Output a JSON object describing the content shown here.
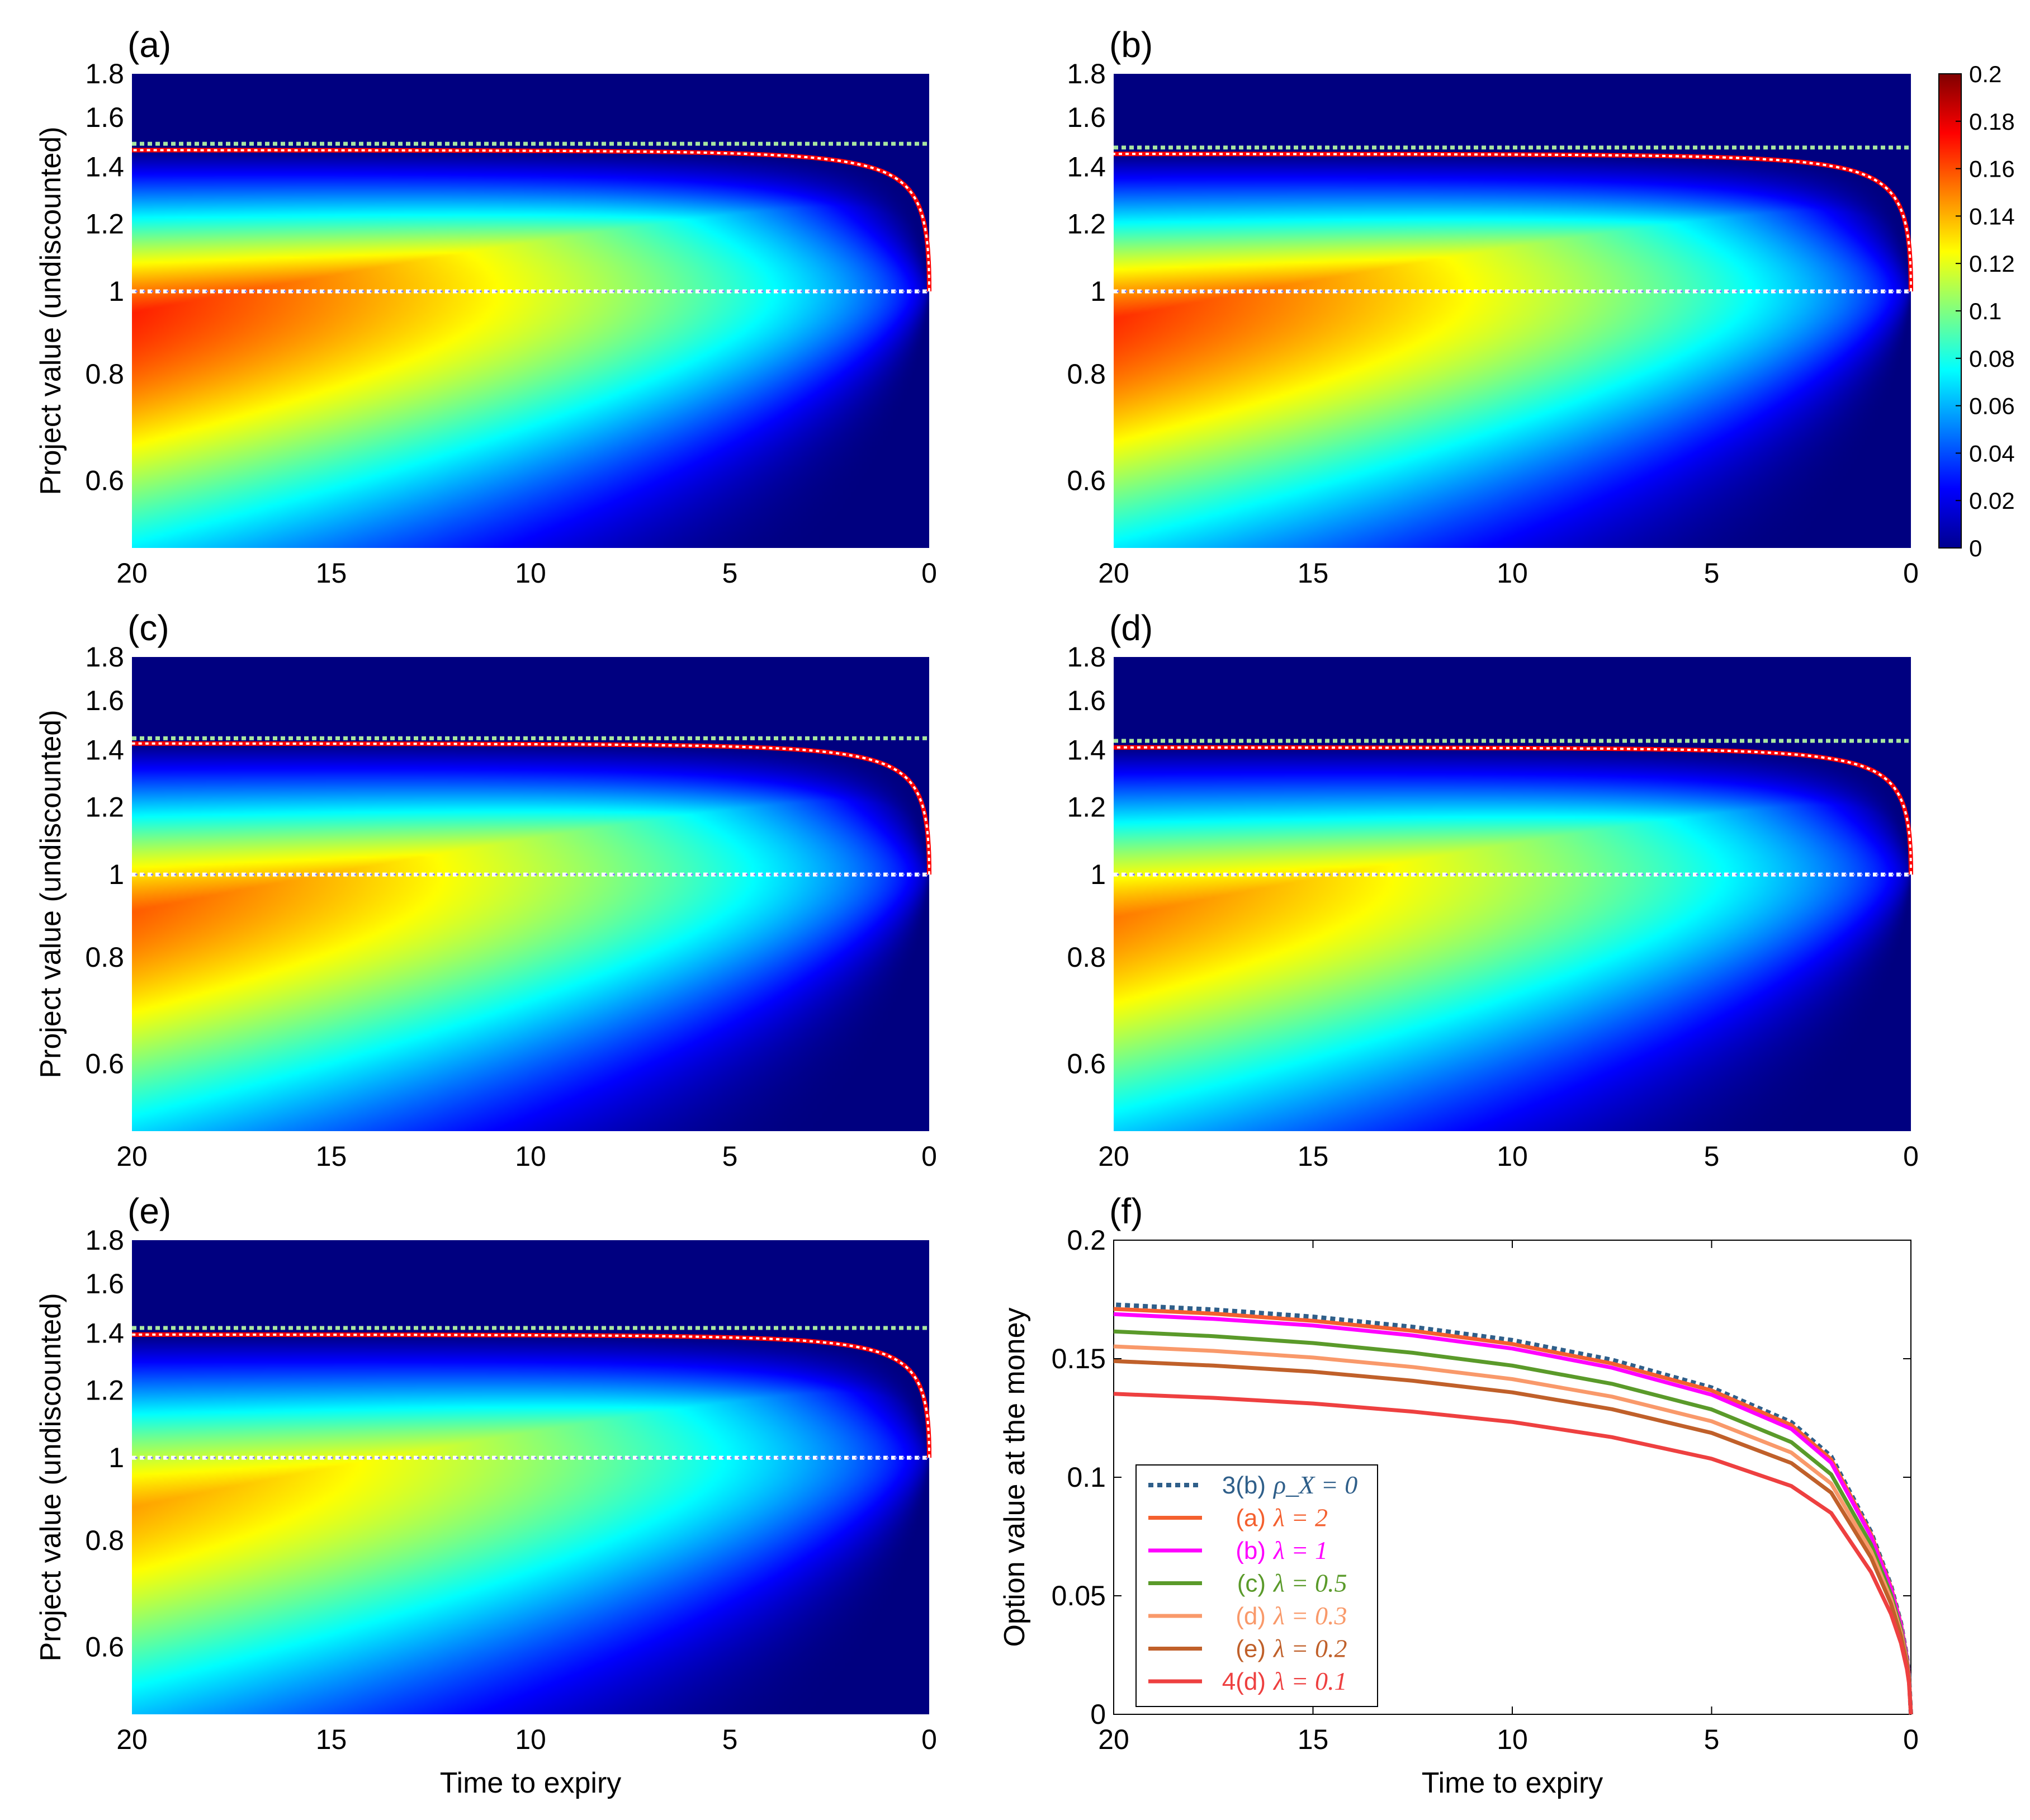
{
  "colors": {
    "heat_low": "#00008f",
    "heat_high": "#800000",
    "boundary_upper": "#ff0000",
    "boundary_dash": "#ffffff",
    "terminal_line": "#a8e6a0",
    "atm_line": "#ffffff"
  },
  "colorbar": {
    "ticks": [
      "0",
      "0.02",
      "0.04",
      "0.06",
      "0.08",
      "0.1",
      "0.12",
      "0.14",
      "0.16",
      "0.18",
      "0.2"
    ],
    "min": 0,
    "max": 0.2
  },
  "chart_data": [
    {
      "type": "heatmap",
      "panel": "(a)",
      "xlabel": "",
      "ylabel": "Project value (undiscounted)",
      "x_ticks": [
        "20",
        "15",
        "10",
        "5",
        "0"
      ],
      "y_ticks": [
        "0.6",
        "0.8",
        "1",
        "1.2",
        "1.4",
        "1.6",
        "1.8"
      ],
      "xlim": [
        20,
        0
      ],
      "ylim": [
        0.5,
        1.8
      ],
      "peak_value": 0.17,
      "terminal_boundary": 1.49,
      "exercise_boundary_at_20": 1.465,
      "strike": 1.0
    },
    {
      "type": "heatmap",
      "panel": "(b)",
      "xlabel": "",
      "ylabel": "",
      "x_ticks": [
        "20",
        "15",
        "10",
        "5",
        "0"
      ],
      "y_ticks": [
        "0.6",
        "0.8",
        "1",
        "1.2",
        "1.4",
        "1.6",
        "1.8"
      ],
      "xlim": [
        20,
        0
      ],
      "ylim": [
        0.5,
        1.8
      ],
      "peak_value": 0.168,
      "terminal_boundary": 1.475,
      "exercise_boundary_at_20": 1.45,
      "strike": 1.0
    },
    {
      "type": "heatmap",
      "panel": "(c)",
      "xlabel": "",
      "ylabel": "Project value (undiscounted)",
      "x_ticks": [
        "20",
        "15",
        "10",
        "5",
        "0"
      ],
      "y_ticks": [
        "0.6",
        "0.8",
        "1",
        "1.2",
        "1.4",
        "1.6",
        "1.8"
      ],
      "xlim": [
        20,
        0
      ],
      "ylim": [
        0.5,
        1.8
      ],
      "peak_value": 0.16,
      "terminal_boundary": 1.445,
      "exercise_boundary_at_20": 1.425,
      "strike": 1.0
    },
    {
      "type": "heatmap",
      "panel": "(d)",
      "xlabel": "",
      "ylabel": "",
      "x_ticks": [
        "20",
        "15",
        "10",
        "5",
        "0"
      ],
      "y_ticks": [
        "0.6",
        "0.8",
        "1",
        "1.2",
        "1.4",
        "1.6",
        "1.8"
      ],
      "xlim": [
        20,
        0
      ],
      "ylim": [
        0.5,
        1.8
      ],
      "peak_value": 0.155,
      "terminal_boundary": 1.435,
      "exercise_boundary_at_20": 1.41,
      "strike": 1.0
    },
    {
      "type": "heatmap",
      "panel": "(e)",
      "xlabel": "Time to expiry",
      "ylabel": "Project value (undiscounted)",
      "x_ticks": [
        "20",
        "15",
        "10",
        "5",
        "0"
      ],
      "y_ticks": [
        "0.6",
        "0.8",
        "1",
        "1.2",
        "1.4",
        "1.6",
        "1.8"
      ],
      "xlim": [
        20,
        0
      ],
      "ylim": [
        0.5,
        1.8
      ],
      "peak_value": 0.148,
      "terminal_boundary": 1.42,
      "exercise_boundary_at_20": 1.395,
      "strike": 1.0
    },
    {
      "type": "line",
      "panel": "(f)",
      "xlabel": "Time to expiry",
      "ylabel": "Option value at the money",
      "x_ticks": [
        "20",
        "15",
        "10",
        "5",
        "0"
      ],
      "y_ticks": [
        "0",
        "0.05",
        "0.1",
        "0.15",
        "0.2"
      ],
      "xlim": [
        20,
        0
      ],
      "ylim": [
        0,
        0.2
      ],
      "x": [
        0,
        0.05,
        0.1,
        0.25,
        0.5,
        1,
        2,
        3,
        5,
        7.5,
        10,
        12.5,
        15,
        17.5,
        20
      ],
      "series": [
        {
          "name": "3(b)",
          "lambda": "ρ_X = 0",
          "color": "#2f5f8a",
          "dashed": true,
          "values": [
            0,
            0.0172,
            0.0243,
            0.0385,
            0.0544,
            0.0769,
            0.1088,
            0.1232,
            0.1378,
            0.1495,
            0.1578,
            0.1634,
            0.1677,
            0.1707,
            0.1728
          ]
        },
        {
          "name": "(a)",
          "lambda": "λ = 2",
          "color": "#f4602f",
          "dashed": false,
          "values": [
            0,
            0.017,
            0.024,
            0.038,
            0.0537,
            0.076,
            0.1075,
            0.122,
            0.1366,
            0.148,
            0.1562,
            0.1618,
            0.166,
            0.169,
            0.171
          ]
        },
        {
          "name": "(b)",
          "lambda": "λ = 1",
          "color": "#ff00ff",
          "dashed": false,
          "values": [
            0,
            0.0168,
            0.0237,
            0.0375,
            0.053,
            0.075,
            0.1061,
            0.1204,
            0.1348,
            0.1462,
            0.1543,
            0.1598,
            0.164,
            0.1668,
            0.1688
          ]
        },
        {
          "name": "(c)",
          "lambda": "λ = 0.5",
          "color": "#5a9a2a",
          "dashed": false,
          "values": [
            0,
            0.016,
            0.0227,
            0.0358,
            0.0506,
            0.0716,
            0.1012,
            0.1148,
            0.1286,
            0.1394,
            0.1471,
            0.1525,
            0.1566,
            0.1595,
            0.1615
          ]
        },
        {
          "name": "(d)",
          "lambda": "λ = 0.3",
          "color": "#f9996a",
          "dashed": false,
          "values": [
            0,
            0.0154,
            0.0218,
            0.0344,
            0.0486,
            0.0688,
            0.0973,
            0.1104,
            0.1236,
            0.134,
            0.1414,
            0.1465,
            0.1505,
            0.1533,
            0.1552
          ]
        },
        {
          "name": "(e)",
          "lambda": "λ = 0.2",
          "color": "#c0602a",
          "dashed": false,
          "values": [
            0,
            0.0148,
            0.0209,
            0.033,
            0.0467,
            0.0661,
            0.0935,
            0.106,
            0.1187,
            0.1287,
            0.1358,
            0.1407,
            0.1445,
            0.1471,
            0.149
          ]
        },
        {
          "name": "4(d)",
          "lambda": "λ = 0.1",
          "color": "#ee4040",
          "dashed": false,
          "values": [
            0,
            0.0134,
            0.019,
            0.03,
            0.0424,
            0.06,
            0.0849,
            0.0963,
            0.1078,
            0.1169,
            0.1233,
            0.1277,
            0.1311,
            0.1335,
            0.1352
          ]
        }
      ]
    }
  ]
}
